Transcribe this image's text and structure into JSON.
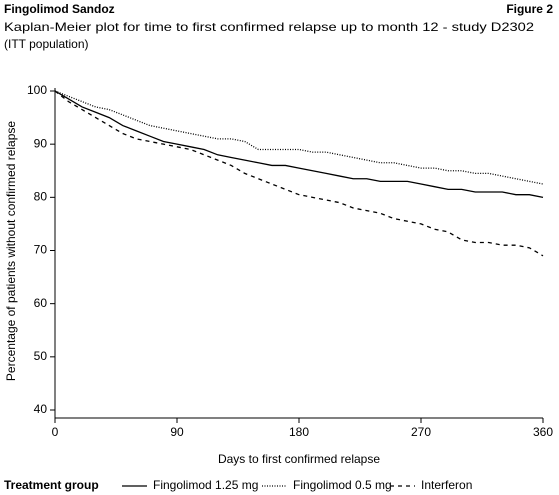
{
  "chart_data": {
    "type": "line",
    "header": "Fingolimod Sandoz",
    "figure_label": "Figure 2",
    "subtitle": [
      "Kaplan-Meier plot for time to first confirmed relapse up to month 12 - study D2302",
      "(ITT population)"
    ],
    "xlabel": "Days to first confirmed relapse",
    "ylabel": "Percentage of patients without confirmed relapse",
    "legend_title": "Treatment group",
    "xlim": [
      0,
      360
    ],
    "xticks": [
      0,
      90,
      180,
      270,
      360
    ],
    "ylim": [
      40,
      100
    ],
    "yticks": [
      40,
      50,
      60,
      70,
      80,
      90,
      100
    ],
    "x": [
      0,
      10,
      20,
      30,
      40,
      50,
      60,
      70,
      80,
      90,
      100,
      110,
      120,
      130,
      140,
      150,
      160,
      170,
      180,
      190,
      200,
      210,
      220,
      230,
      240,
      250,
      260,
      270,
      280,
      290,
      300,
      310,
      320,
      330,
      340,
      350,
      360
    ],
    "series": [
      {
        "name": "Fingolimod 1.25 mg",
        "color": "#000000",
        "dash": "solid",
        "values": [
          100,
          98.5,
          97,
          96,
          95,
          93.5,
          92.5,
          91.5,
          90.5,
          90,
          89.5,
          89,
          88,
          87.5,
          87,
          86.5,
          86,
          86,
          85.5,
          85,
          84.5,
          84,
          83.5,
          83.5,
          83,
          83,
          83,
          82.5,
          82,
          81.5,
          81.5,
          81,
          81,
          81,
          80.5,
          80.5,
          80
        ]
      },
      {
        "name": "Fingolimod 0.5 mg",
        "color": "#000000",
        "dash": "dotted",
        "values": [
          100,
          99,
          98,
          97,
          96.5,
          95.5,
          94.5,
          93.5,
          93,
          92.5,
          92,
          91.5,
          91,
          91,
          90.5,
          89,
          89,
          89,
          89,
          88.5,
          88.5,
          88,
          87.5,
          87,
          86.5,
          86.5,
          86,
          85.5,
          85.5,
          85,
          85,
          84.5,
          84.5,
          84,
          83.5,
          83,
          82.5
        ]
      },
      {
        "name": "Interferon",
        "color": "#000000",
        "dash": "dashed",
        "values": [
          100,
          98,
          96.5,
          95,
          93.5,
          92,
          91,
          90.5,
          90,
          89.5,
          89,
          88,
          87,
          86,
          84.5,
          83.5,
          82.5,
          81.5,
          80.5,
          80,
          79.5,
          79,
          78,
          77.5,
          77,
          76,
          75.5,
          75,
          74,
          73.5,
          72,
          71.5,
          71.5,
          71,
          71,
          70.5,
          69
        ]
      }
    ]
  }
}
